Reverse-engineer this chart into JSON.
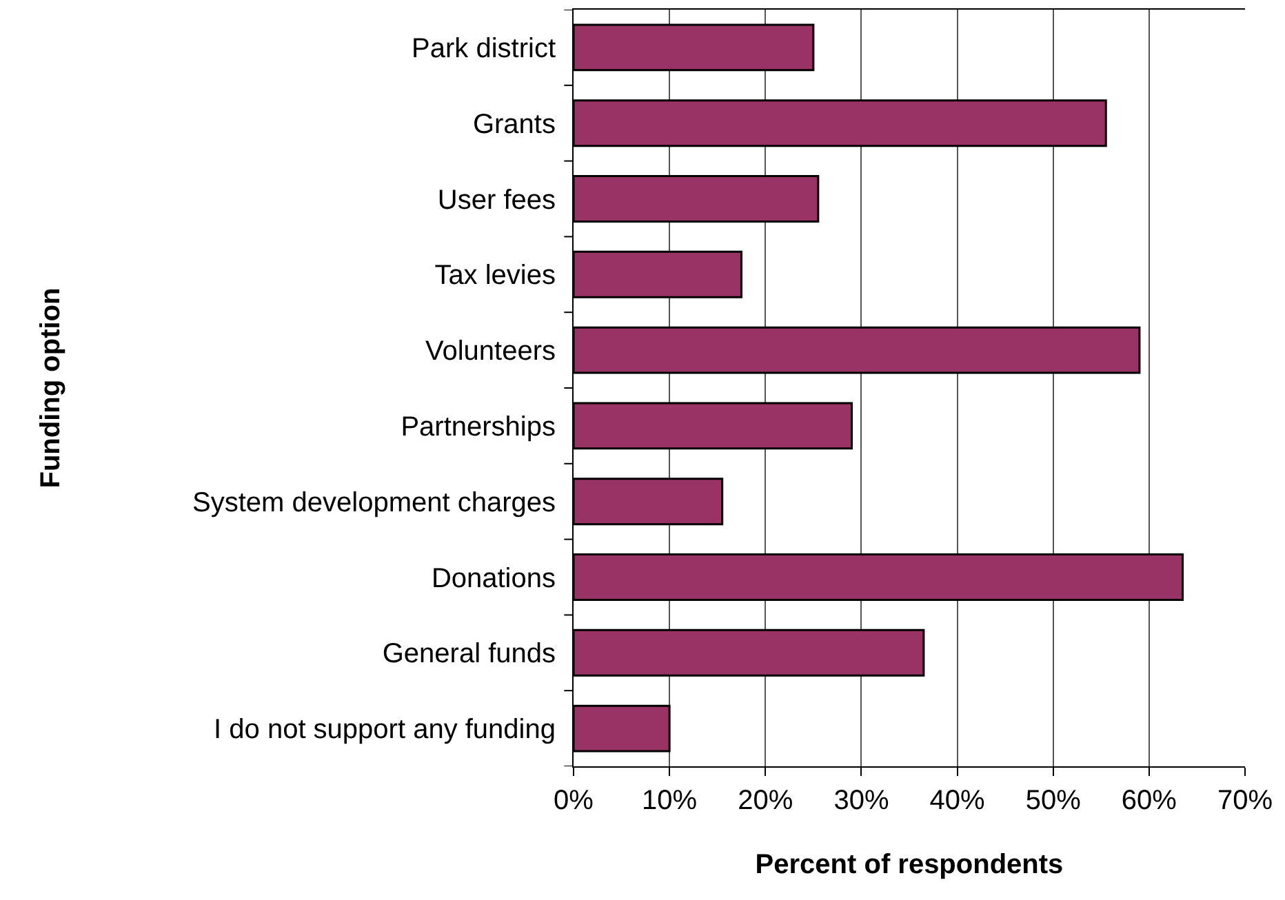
{
  "chart_data": {
    "type": "bar",
    "orientation": "horizontal",
    "xlabel": "Percent of respondents",
    "ylabel": "Funding option",
    "categories": [
      "Park district",
      "Grants",
      "User fees",
      "Tax levies",
      "Volunteers",
      "Partnerships",
      "System development charges",
      "Donations",
      "General funds",
      "I do not support any funding"
    ],
    "values": [
      25,
      55.5,
      25.5,
      17.5,
      59,
      29,
      15.5,
      63.5,
      36.5,
      10
    ],
    "color": "#993366",
    "xlim": [
      0,
      70
    ],
    "xticks": [
      {
        "value": 0,
        "label": "0%"
      },
      {
        "value": 10,
        "label": "10%"
      },
      {
        "value": 20,
        "label": "20%"
      },
      {
        "value": 30,
        "label": "30%"
      },
      {
        "value": 40,
        "label": "40%"
      },
      {
        "value": 50,
        "label": "50%"
      },
      {
        "value": 60,
        "label": "60%"
      },
      {
        "value": 70,
        "label": "70%"
      }
    ],
    "grid": "x"
  }
}
